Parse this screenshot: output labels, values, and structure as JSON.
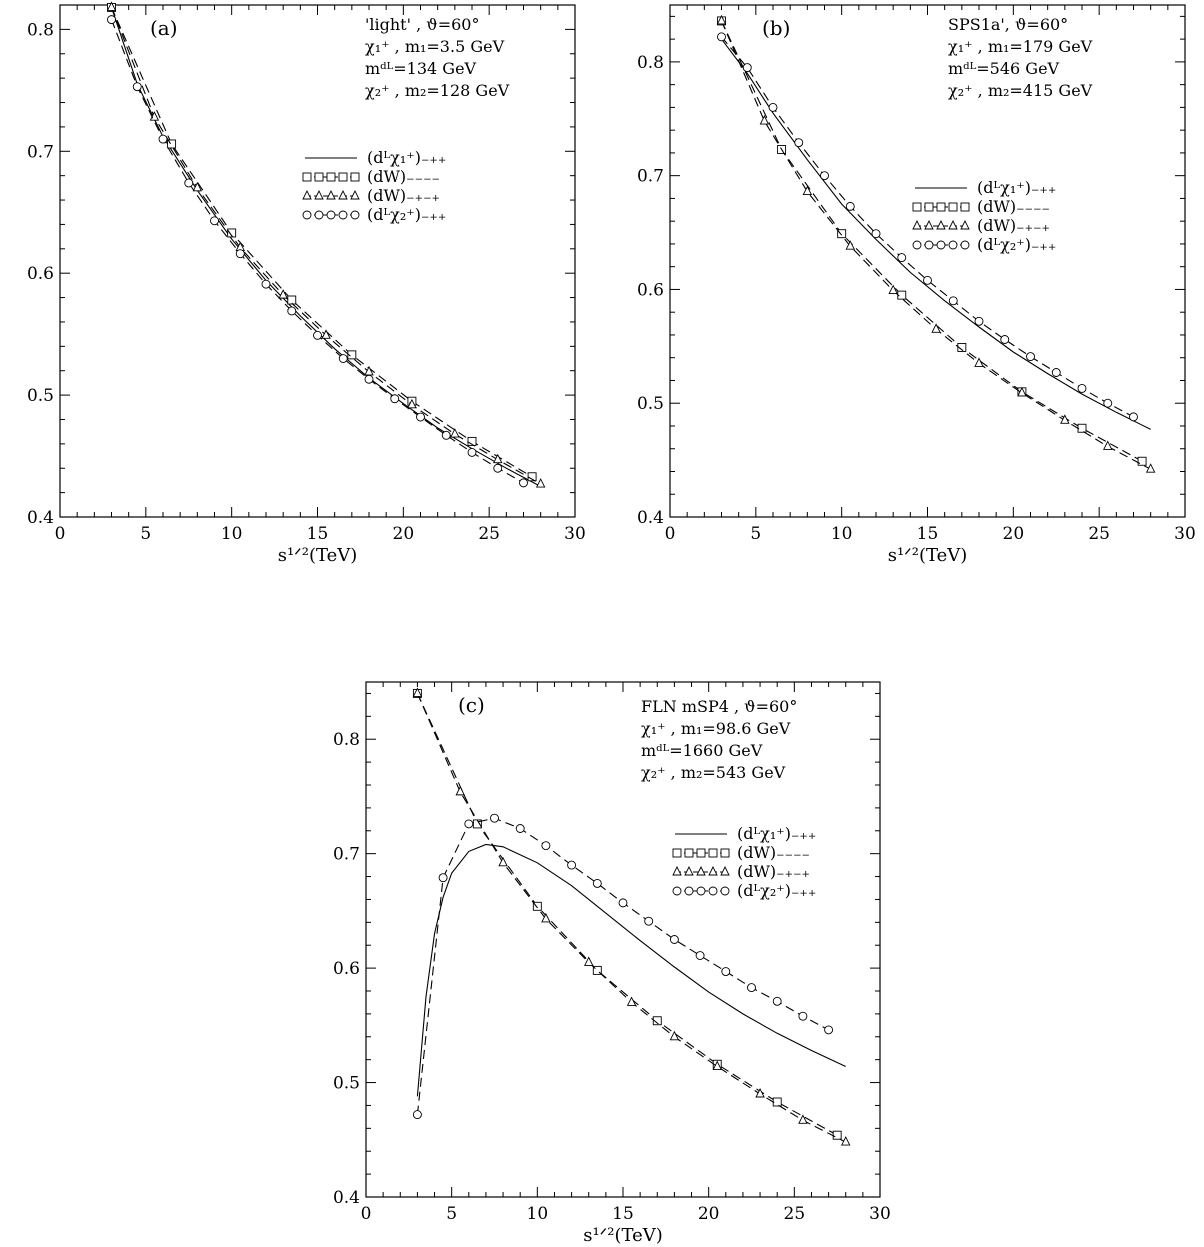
{
  "chart_data": [
    {
      "type": "line",
      "panel_label": "(a)",
      "annotations": [
        "'light' , ϑ=60°",
        "χ₁⁺ , m₁=3.5 GeV",
        "mᵈᴸ=134 GeV",
        "χ₂⁺ , m₂=128 GeV"
      ],
      "xlabel": "s¹ᐟ²(TeV)",
      "ylabel": "",
      "xlim": [
        0,
        30
      ],
      "ylim": [
        0.4,
        0.82
      ],
      "xticks": [
        0,
        5,
        10,
        15,
        20,
        25,
        30
      ],
      "yticks": [
        0.4,
        0.5,
        0.6,
        0.7,
        0.8
      ],
      "legend_position": "center-right",
      "series": [
        {
          "name": "(dᴸχ₁⁺)₋₊₊",
          "style": "solid",
          "marker": "none",
          "x": [
            3,
            4.5,
            6,
            8,
            10,
            12,
            14,
            16,
            18,
            20,
            22,
            24,
            26,
            28
          ],
          "y": [
            0.818,
            0.755,
            0.712,
            0.668,
            0.628,
            0.594,
            0.565,
            0.538,
            0.514,
            0.493,
            0.473,
            0.456,
            0.44,
            0.425
          ]
        },
        {
          "name": "(dW)₋₋₋₋",
          "style": "dashed",
          "marker": "square",
          "x": [
            3,
            6.5,
            10,
            13.5,
            17,
            20.5,
            24,
            27.5
          ],
          "y": [
            0.818,
            0.706,
            0.633,
            0.578,
            0.533,
            0.495,
            0.462,
            0.433
          ]
        },
        {
          "name": "(dW)₋₊₋₊",
          "style": "dashed",
          "marker": "triangle",
          "x": [
            3,
            5.5,
            8,
            10.5,
            13,
            15.5,
            18,
            20.5,
            23,
            25.5,
            28
          ],
          "y": [
            0.818,
            0.728,
            0.67,
            0.621,
            0.582,
            0.549,
            0.519,
            0.492,
            0.468,
            0.447,
            0.427
          ]
        },
        {
          "name": "(dᴸχ₂⁺)₋₊₊",
          "style": "dashed",
          "marker": "circle",
          "x": [
            3,
            4.5,
            6,
            7.5,
            9,
            10.5,
            12,
            13.5,
            15,
            16.5,
            18,
            19.5,
            21,
            22.5,
            24,
            25.5,
            27
          ],
          "y": [
            0.808,
            0.753,
            0.71,
            0.674,
            0.643,
            0.616,
            0.591,
            0.569,
            0.549,
            0.53,
            0.513,
            0.497,
            0.482,
            0.467,
            0.453,
            0.44,
            0.428
          ]
        }
      ]
    },
    {
      "type": "line",
      "panel_label": "(b)",
      "annotations": [
        "SPS1a', ϑ=60°",
        "χ₁⁺ , m₁=179 GeV",
        "mᵈᴸ=546 GeV",
        "χ₂⁺ , m₂=415 GeV"
      ],
      "xlabel": "s¹ᐟ²(TeV)",
      "ylabel": "",
      "xlim": [
        0,
        30
      ],
      "ylim": [
        0.4,
        0.85
      ],
      "xticks": [
        0,
        5,
        10,
        15,
        20,
        25,
        30
      ],
      "yticks": [
        0.4,
        0.5,
        0.6,
        0.7,
        0.8
      ],
      "legend_position": "center-right",
      "series": [
        {
          "name": "(dᴸχ₁⁺)₋₊₊",
          "style": "solid",
          "marker": "none",
          "x": [
            3,
            4.5,
            6,
            8,
            10,
            12,
            14,
            16,
            18,
            20,
            22,
            24,
            26,
            28
          ],
          "y": [
            0.82,
            0.79,
            0.755,
            0.714,
            0.675,
            0.644,
            0.615,
            0.59,
            0.567,
            0.545,
            0.526,
            0.508,
            0.492,
            0.477
          ]
        },
        {
          "name": "(dW)₋₋₋₋",
          "style": "dashed",
          "marker": "square",
          "x": [
            3,
            6.5,
            10,
            13.5,
            17,
            20.5,
            24,
            27.5
          ],
          "y": [
            0.836,
            0.723,
            0.649,
            0.595,
            0.549,
            0.51,
            0.478,
            0.449
          ]
        },
        {
          "name": "(dW)₋₊₋₊",
          "style": "dashed",
          "marker": "triangle",
          "x": [
            3,
            5.5,
            8,
            10.5,
            13,
            15.5,
            18,
            20.5,
            23,
            25.5,
            28
          ],
          "y": [
            0.836,
            0.748,
            0.686,
            0.638,
            0.599,
            0.565,
            0.535,
            0.509,
            0.485,
            0.462,
            0.442
          ]
        },
        {
          "name": "(dᴸχ₂⁺)₋₊₊",
          "style": "dashed",
          "marker": "circle",
          "x": [
            3,
            4.5,
            6,
            7.5,
            9,
            10.5,
            12,
            13.5,
            15,
            16.5,
            18,
            19.5,
            21,
            22.5,
            24,
            25.5,
            27
          ],
          "y": [
            0.822,
            0.795,
            0.76,
            0.729,
            0.7,
            0.673,
            0.649,
            0.628,
            0.608,
            0.59,
            0.572,
            0.556,
            0.541,
            0.527,
            0.513,
            0.5,
            0.488
          ]
        }
      ]
    },
    {
      "type": "line",
      "panel_label": "(c)",
      "annotations": [
        "FLN mSP4 , ϑ=60°",
        "χ₁⁺ , m₁=98.6 GeV",
        "mᵈᴸ=1660 GeV",
        "χ₂⁺ , m₂=543 GeV"
      ],
      "xlabel": "s¹ᐟ²(TeV)",
      "ylabel": "",
      "xlim": [
        0,
        30
      ],
      "ylim": [
        0.4,
        0.85
      ],
      "xticks": [
        0,
        5,
        10,
        15,
        20,
        25,
        30
      ],
      "yticks": [
        0.4,
        0.5,
        0.6,
        0.7,
        0.8
      ],
      "legend_position": "center-right",
      "series": [
        {
          "name": "(dᴸχ₁⁺)₋₊₊",
          "style": "solid",
          "marker": "none",
          "x": [
            3,
            3.5,
            4,
            4.5,
            5,
            6,
            7,
            8,
            10,
            12,
            14,
            16,
            18,
            20,
            22,
            24,
            26,
            28
          ],
          "y": [
            0.488,
            0.575,
            0.63,
            0.662,
            0.683,
            0.702,
            0.708,
            0.706,
            0.692,
            0.672,
            0.648,
            0.624,
            0.601,
            0.579,
            0.56,
            0.543,
            0.528,
            0.514
          ]
        },
        {
          "name": "(dW)₋₋₋₋",
          "style": "dashed",
          "marker": "square",
          "x": [
            3,
            6.5,
            10,
            13.5,
            17,
            20.5,
            24,
            27.5
          ],
          "y": [
            0.84,
            0.726,
            0.654,
            0.598,
            0.554,
            0.516,
            0.483,
            0.454
          ]
        },
        {
          "name": "(dW)₋₊₋₊",
          "style": "dashed",
          "marker": "triangle",
          "x": [
            3,
            5.5,
            8,
            10.5,
            13,
            15.5,
            18,
            20.5,
            23,
            25.5,
            28
          ],
          "y": [
            0.84,
            0.754,
            0.692,
            0.643,
            0.605,
            0.57,
            0.54,
            0.514,
            0.49,
            0.467,
            0.448
          ]
        },
        {
          "name": "(dᴸχ₂⁺)₋₊₊",
          "style": "dashed",
          "marker": "circle",
          "x": [
            3,
            4.5,
            6,
            7.5,
            9,
            10.5,
            12,
            13.5,
            15,
            16.5,
            18,
            19.5,
            21,
            22.5,
            24,
            25.5,
            27
          ],
          "y": [
            0.472,
            0.679,
            0.726,
            0.731,
            0.722,
            0.707,
            0.69,
            0.674,
            0.657,
            0.641,
            0.625,
            0.611,
            0.597,
            0.583,
            0.571,
            0.558,
            0.546
          ]
        }
      ]
    }
  ]
}
